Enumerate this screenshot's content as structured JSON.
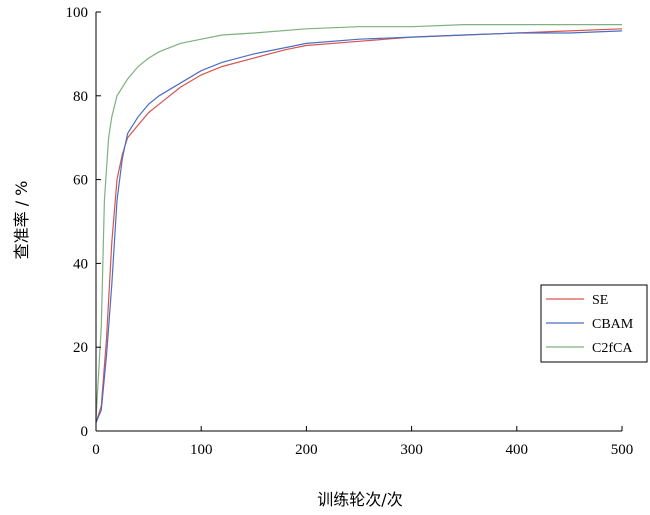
{
  "chart_data": {
    "type": "line",
    "title": "",
    "xlabel": "训练轮次/次",
    "ylabel": "查准率 / %",
    "xlim": [
      0,
      500
    ],
    "ylim": [
      0,
      100
    ],
    "xticks": [
      "0",
      "100",
      "200",
      "300",
      "400",
      "500"
    ],
    "yticks": [
      "0",
      "20",
      "40",
      "60",
      "80",
      "100"
    ],
    "grid": false,
    "legend_position": "right",
    "series": [
      {
        "name": "SE",
        "color": "#d9534f",
        "points": [
          [
            0,
            2
          ],
          [
            5,
            6
          ],
          [
            10,
            22
          ],
          [
            15,
            45
          ],
          [
            20,
            60
          ],
          [
            25,
            66
          ],
          [
            30,
            70
          ],
          [
            40,
            73
          ],
          [
            50,
            76
          ],
          [
            60,
            78
          ],
          [
            80,
            82
          ],
          [
            100,
            85
          ],
          [
            120,
            87
          ],
          [
            150,
            89
          ],
          [
            180,
            91
          ],
          [
            200,
            92
          ],
          [
            250,
            93
          ],
          [
            300,
            94
          ],
          [
            350,
            94.5
          ],
          [
            400,
            95
          ],
          [
            450,
            95.5
          ],
          [
            500,
            96
          ]
        ]
      },
      {
        "name": "CBAM",
        "color": "#4a6fc2",
        "points": [
          [
            0,
            2
          ],
          [
            5,
            5
          ],
          [
            10,
            18
          ],
          [
            15,
            35
          ],
          [
            20,
            55
          ],
          [
            25,
            65
          ],
          [
            30,
            71
          ],
          [
            40,
            75
          ],
          [
            50,
            78
          ],
          [
            60,
            80
          ],
          [
            80,
            83
          ],
          [
            100,
            86
          ],
          [
            120,
            88
          ],
          [
            150,
            90
          ],
          [
            180,
            91.5
          ],
          [
            200,
            92.5
          ],
          [
            250,
            93.5
          ],
          [
            300,
            94
          ],
          [
            350,
            94.5
          ],
          [
            400,
            95
          ],
          [
            450,
            95
          ],
          [
            500,
            95.5
          ]
        ]
      },
      {
        "name": "C2fCA",
        "color": "#7fb07f",
        "points": [
          [
            0,
            3
          ],
          [
            5,
            25
          ],
          [
            8,
            55
          ],
          [
            12,
            70
          ],
          [
            15,
            75
          ],
          [
            20,
            80
          ],
          [
            30,
            84
          ],
          [
            40,
            87
          ],
          [
            50,
            89
          ],
          [
            60,
            90.5
          ],
          [
            80,
            92.5
          ],
          [
            100,
            93.5
          ],
          [
            120,
            94.5
          ],
          [
            150,
            95
          ],
          [
            200,
            96
          ],
          [
            250,
            96.5
          ],
          [
            300,
            96.5
          ],
          [
            350,
            97
          ],
          [
            400,
            97
          ],
          [
            450,
            97
          ],
          [
            500,
            97
          ]
        ]
      }
    ]
  }
}
